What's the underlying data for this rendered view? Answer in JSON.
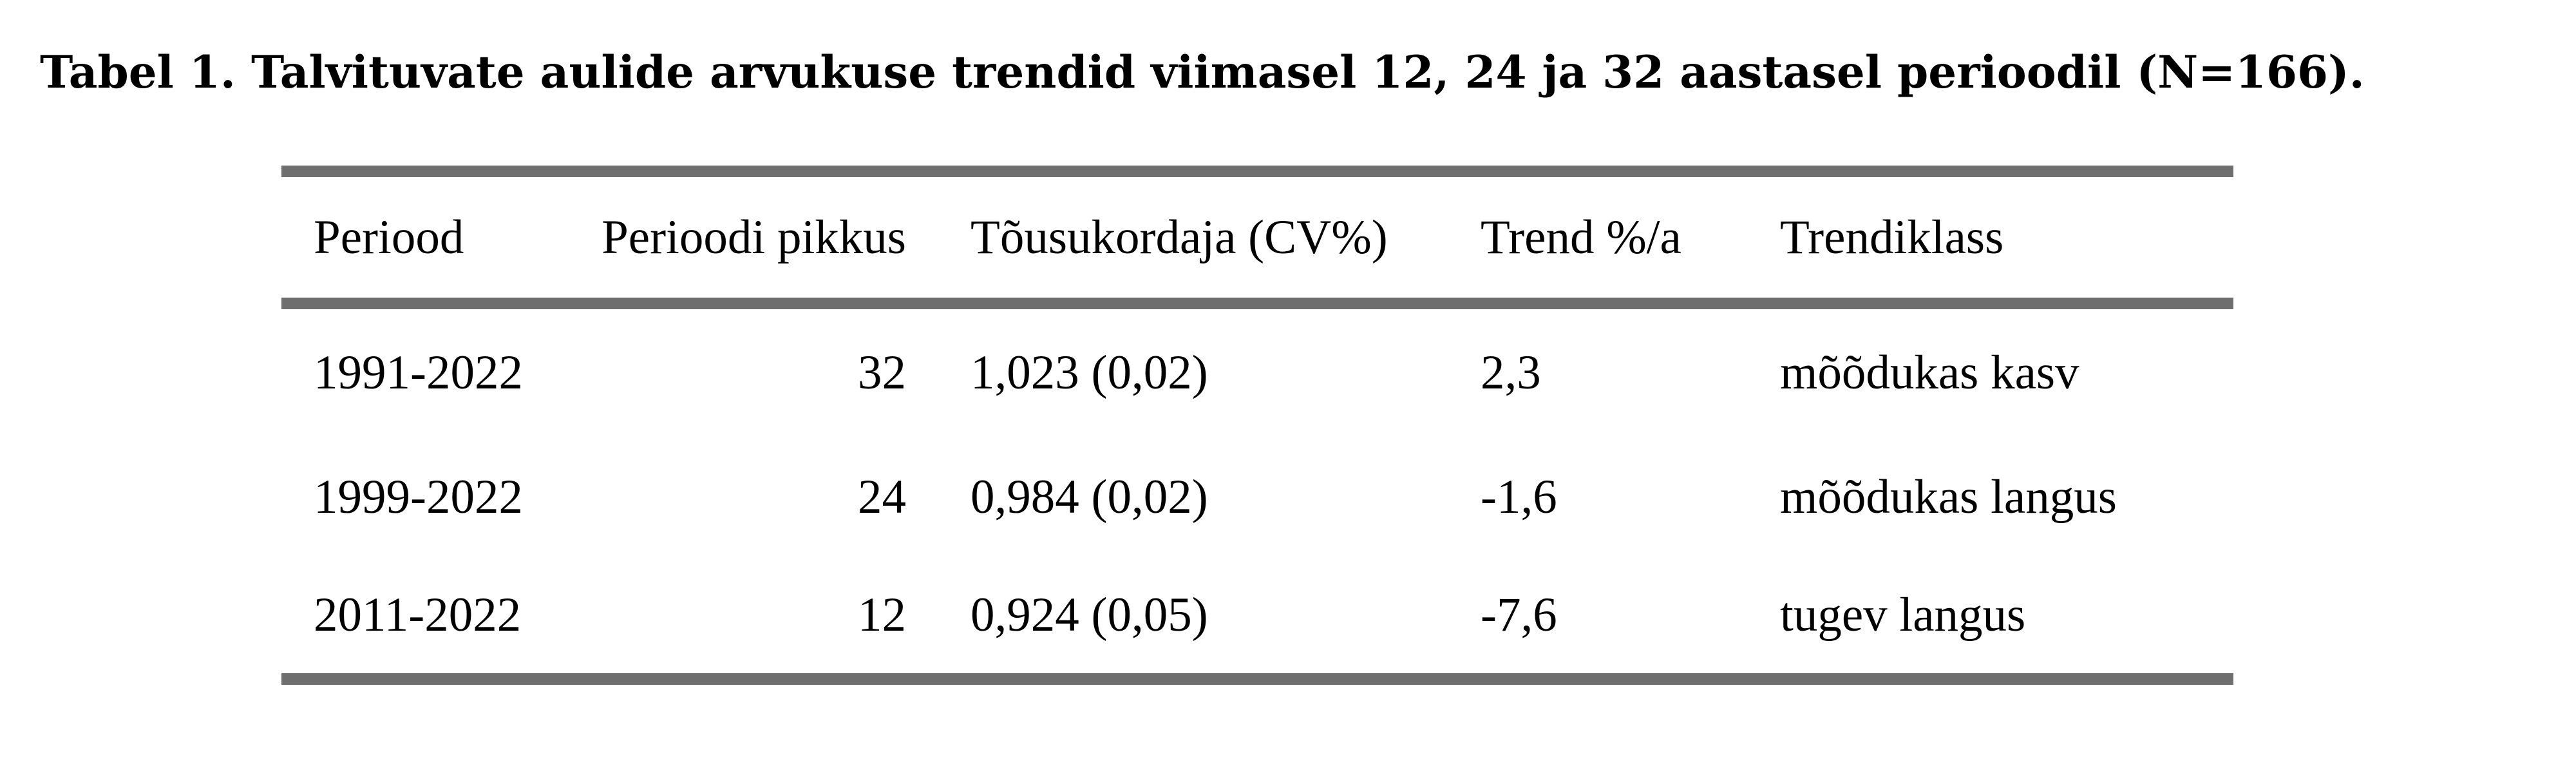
{
  "caption": {
    "label": "Tabel  1.",
    "text": "Talvituvate aulide arvukuse trendid viimasel 12, 24 ja 32 aastasel perioodil (N=166)."
  },
  "table": {
    "headers": [
      "Periood",
      "Perioodi pikkus",
      "Tõusukordaja (CV%)",
      "Trend %/a",
      "Trendiklass"
    ],
    "rows": [
      [
        "1991-2022",
        "32",
        "1,023 (0,02)",
        "2,3",
        "mõõdukas kasv"
      ],
      [
        "1999-2022",
        "24",
        "0,984 (0,02)",
        "-1,6",
        "mõõdukas langus"
      ],
      [
        "2011-2022",
        "12",
        "0,924 (0,05)",
        "-7,6",
        "tugev langus"
      ]
    ]
  }
}
